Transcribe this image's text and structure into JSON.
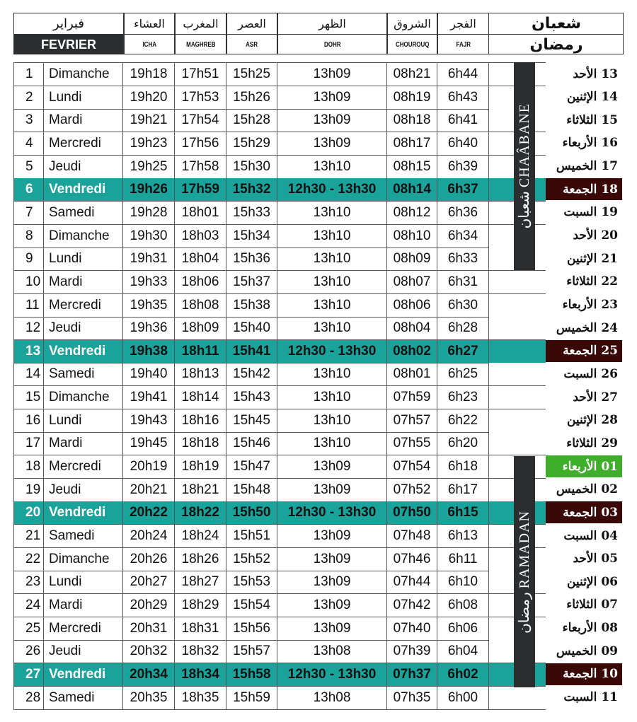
{
  "header": {
    "month_ar": "فبراير",
    "month_fr": "FEVRIER",
    "hijri_top": "شعبان",
    "hijri_bottom": "رمضان",
    "cols": [
      {
        "ar": "العشاء",
        "fr": "ICHA"
      },
      {
        "ar": "المغرب",
        "fr": "MAGHREB"
      },
      {
        "ar": "العصر",
        "fr": "ASR"
      },
      {
        "ar": "الظهر",
        "fr": "DOHR"
      },
      {
        "ar": "الشروق",
        "fr": "CHOUROUQ"
      },
      {
        "ar": "الفجر",
        "fr": "FAJR"
      }
    ]
  },
  "banners": {
    "chaabane": "شعبان CHAÂBANE",
    "ramadan": "رمضان RAMADAN"
  },
  "colors": {
    "friday": "#1aa39a",
    "hijri_friday": "#3b0808",
    "ramadan_start": "#3fae2a"
  },
  "rows": [
    {
      "n": "1",
      "day": "Dimanche",
      "icha": "19h18",
      "maghreb": "17h51",
      "asr": "15h25",
      "dohr": "13h09",
      "chourouq": "08h21",
      "fajr": "6h44",
      "hn": "13",
      "hday": "الأحد"
    },
    {
      "n": "2",
      "day": "Lundi",
      "icha": "19h20",
      "maghreb": "17h53",
      "asr": "15h26",
      "dohr": "13h09",
      "chourouq": "08h19",
      "fajr": "6h43",
      "hn": "14",
      "hday": "الإثنين"
    },
    {
      "n": "3",
      "day": "Mardi",
      "icha": "19h21",
      "maghreb": "17h54",
      "asr": "15h28",
      "dohr": "13h09",
      "chourouq": "08h18",
      "fajr": "6h41",
      "hn": "15",
      "hday": "الثلاثاء"
    },
    {
      "n": "4",
      "day": "Mercredi",
      "icha": "19h23",
      "maghreb": "17h56",
      "asr": "15h29",
      "dohr": "13h09",
      "chourouq": "08h17",
      "fajr": "6h40",
      "hn": "16",
      "hday": "الأربعاء"
    },
    {
      "n": "5",
      "day": "Jeudi",
      "icha": "19h25",
      "maghreb": "17h58",
      "asr": "15h30",
      "dohr": "13h10",
      "chourouq": "08h15",
      "fajr": "6h39",
      "hn": "17",
      "hday": "الخميس"
    },
    {
      "n": "6",
      "day": "Vendredi",
      "icha": "19h26",
      "maghreb": "17h59",
      "asr": "15h32",
      "dohr": "12h30 - 13h30",
      "chourouq": "08h14",
      "fajr": "6h37",
      "hn": "18",
      "hday": "الجمعة",
      "fri": true
    },
    {
      "n": "7",
      "day": "Samedi",
      "icha": "19h28",
      "maghreb": "18h01",
      "asr": "15h33",
      "dohr": "13h10",
      "chourouq": "08h12",
      "fajr": "6h36",
      "hn": "19",
      "hday": "السبت"
    },
    {
      "n": "8",
      "day": "Dimanche",
      "icha": "19h30",
      "maghreb": "18h03",
      "asr": "15h34",
      "dohr": "13h10",
      "chourouq": "08h10",
      "fajr": "6h34",
      "hn": "20",
      "hday": "الأحد"
    },
    {
      "n": "9",
      "day": "Lundi",
      "icha": "19h31",
      "maghreb": "18h04",
      "asr": "15h36",
      "dohr": "13h10",
      "chourouq": "08h09",
      "fajr": "6h33",
      "hn": "21",
      "hday": "الإثنين"
    },
    {
      "n": "10",
      "day": "Mardi",
      "icha": "19h33",
      "maghreb": "18h06",
      "asr": "15h37",
      "dohr": "13h10",
      "chourouq": "08h07",
      "fajr": "6h31",
      "hn": "22",
      "hday": "الثلاثاء"
    },
    {
      "n": "11",
      "day": "Mercredi",
      "icha": "19h35",
      "maghreb": "18h08",
      "asr": "15h38",
      "dohr": "13h10",
      "chourouq": "08h06",
      "fajr": "6h30",
      "hn": "23",
      "hday": "الأربعاء"
    },
    {
      "n": "12",
      "day": "Jeudi",
      "icha": "19h36",
      "maghreb": "18h09",
      "asr": "15h40",
      "dohr": "13h10",
      "chourouq": "08h04",
      "fajr": "6h28",
      "hn": "24",
      "hday": "الخميس"
    },
    {
      "n": "13",
      "day": "Vendredi",
      "icha": "19h38",
      "maghreb": "18h11",
      "asr": "15h41",
      "dohr": "12h30 - 13h30",
      "chourouq": "08h02",
      "fajr": "6h27",
      "hn": "25",
      "hday": "الجمعة",
      "fri": true
    },
    {
      "n": "14",
      "day": "Samedi",
      "icha": "19h40",
      "maghreb": "18h13",
      "asr": "15h42",
      "dohr": "13h10",
      "chourouq": "08h01",
      "fajr": "6h25",
      "hn": "26",
      "hday": "السبت"
    },
    {
      "n": "15",
      "day": "Dimanche",
      "icha": "19h41",
      "maghreb": "18h14",
      "asr": "15h43",
      "dohr": "13h10",
      "chourouq": "07h59",
      "fajr": "6h23",
      "hn": "27",
      "hday": "الأحد"
    },
    {
      "n": "16",
      "day": "Lundi",
      "icha": "19h43",
      "maghreb": "18h16",
      "asr": "15h45",
      "dohr": "13h10",
      "chourouq": "07h57",
      "fajr": "6h22",
      "hn": "28",
      "hday": "الإثنين"
    },
    {
      "n": "17",
      "day": "Mardi",
      "icha": "19h45",
      "maghreb": "18h18",
      "asr": "15h46",
      "dohr": "13h10",
      "chourouq": "07h55",
      "fajr": "6h20",
      "hn": "29",
      "hday": "الثلاثاء"
    },
    {
      "n": "18",
      "day": "Mercredi",
      "icha": "20h19",
      "maghreb": "18h19",
      "asr": "15h47",
      "dohr": "13h09",
      "chourouq": "07h54",
      "fajr": "6h18",
      "hn": "01",
      "hday": "الأربعاء",
      "first": true
    },
    {
      "n": "19",
      "day": "Jeudi",
      "icha": "20h21",
      "maghreb": "18h21",
      "asr": "15h48",
      "dohr": "13h09",
      "chourouq": "07h52",
      "fajr": "6h17",
      "hn": "02",
      "hday": "الخميس"
    },
    {
      "n": "20",
      "day": "Vendredi",
      "icha": "20h22",
      "maghreb": "18h22",
      "asr": "15h50",
      "dohr": "12h30 - 13h30",
      "chourouq": "07h50",
      "fajr": "6h15",
      "hn": "03",
      "hday": "الجمعة",
      "fri": true
    },
    {
      "n": "21",
      "day": "Samedi",
      "icha": "20h24",
      "maghreb": "18h24",
      "asr": "15h51",
      "dohr": "13h09",
      "chourouq": "07h48",
      "fajr": "6h13",
      "hn": "04",
      "hday": "السبت"
    },
    {
      "n": "22",
      "day": "Dimanche",
      "icha": "20h26",
      "maghreb": "18h26",
      "asr": "15h52",
      "dohr": "13h09",
      "chourouq": "07h46",
      "fajr": "6h11",
      "hn": "05",
      "hday": "الأحد"
    },
    {
      "n": "23",
      "day": "Lundi",
      "icha": "20h27",
      "maghreb": "18h27",
      "asr": "15h53",
      "dohr": "13h09",
      "chourouq": "07h44",
      "fajr": "6h10",
      "hn": "06",
      "hday": "الإثنين"
    },
    {
      "n": "24",
      "day": "Mardi",
      "icha": "20h29",
      "maghreb": "18h29",
      "asr": "15h54",
      "dohr": "13h09",
      "chourouq": "07h42",
      "fajr": "6h08",
      "hn": "07",
      "hday": "الثلاثاء"
    },
    {
      "n": "25",
      "day": "Mercredi",
      "icha": "20h31",
      "maghreb": "18h31",
      "asr": "15h56",
      "dohr": "13h09",
      "chourouq": "07h40",
      "fajr": "6h06",
      "hn": "08",
      "hday": "الأربعاء"
    },
    {
      "n": "26",
      "day": "Jeudi",
      "icha": "20h32",
      "maghreb": "18h32",
      "asr": "15h57",
      "dohr": "13h08",
      "chourouq": "07h39",
      "fajr": "6h04",
      "hn": "09",
      "hday": "الخميس"
    },
    {
      "n": "27",
      "day": "Vendredi",
      "icha": "20h34",
      "maghreb": "18h34",
      "asr": "15h58",
      "dohr": "12h30 - 13h30",
      "chourouq": "07h37",
      "fajr": "6h02",
      "hn": "10",
      "hday": "الجمعة",
      "fri": true
    },
    {
      "n": "28",
      "day": "Samedi",
      "icha": "20h35",
      "maghreb": "18h35",
      "asr": "15h59",
      "dohr": "13h08",
      "chourouq": "07h35",
      "fajr": "6h00",
      "hn": "11",
      "hday": "السبت"
    }
  ]
}
